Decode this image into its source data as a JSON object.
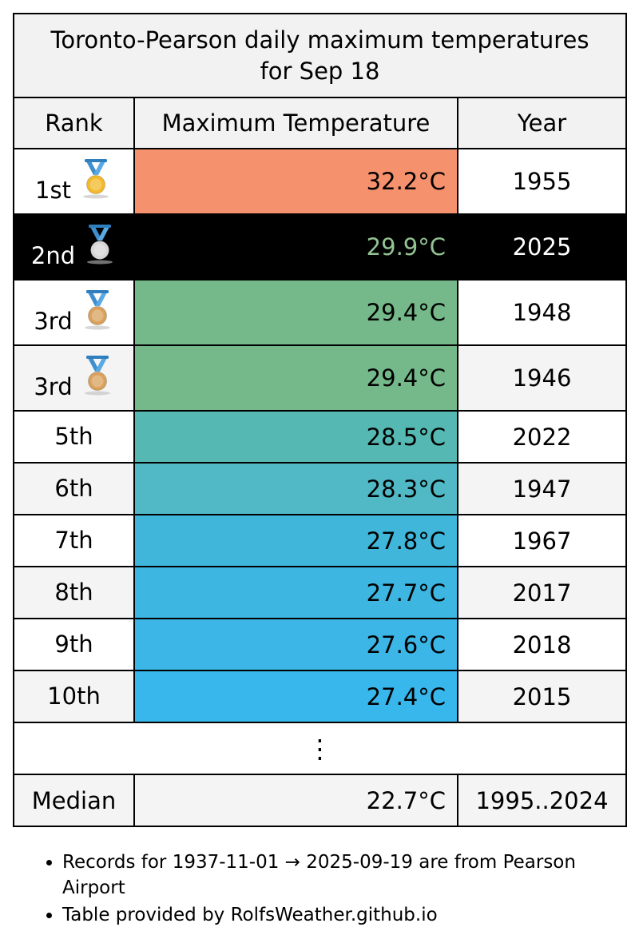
{
  "title": {
    "line1": "Toronto-Pearson daily maximum temperatures",
    "line2": "for Sep 18"
  },
  "headers": {
    "rank": "Rank",
    "temp": "Maximum Temperature",
    "year": "Year"
  },
  "rows": [
    {
      "rank": "1st",
      "temp": "32.2°C",
      "year": "1955",
      "color": "#f5916d",
      "medal": "gold"
    },
    {
      "rank": "2nd",
      "temp": "29.9°C",
      "year": "2025",
      "color": "#000000",
      "medal": "silver"
    },
    {
      "rank": "3rd",
      "temp": "29.4°C",
      "year": "1948",
      "color": "#75b98a",
      "medal": "bronze"
    },
    {
      "rank": "3rd",
      "temp": "29.4°C",
      "year": "1946",
      "color": "#75b98a",
      "medal": "bronze"
    },
    {
      "rank": "5th",
      "temp": "28.5°C",
      "year": "2022",
      "color": "#55b8b2"
    },
    {
      "rank": "6th",
      "temp": "28.3°C",
      "year": "1947",
      "color": "#50b9c5"
    },
    {
      "rank": "7th",
      "temp": "27.8°C",
      "year": "1967",
      "color": "#3fb6da"
    },
    {
      "rank": "8th",
      "temp": "27.7°C",
      "year": "2017",
      "color": "#3db6e2"
    },
    {
      "rank": "9th",
      "temp": "27.6°C",
      "year": "2018",
      "color": "#3bb6e6"
    },
    {
      "rank": "10th",
      "temp": "27.4°C",
      "year": "2015",
      "color": "#37b7eb"
    }
  ],
  "ellipsis": "⋮",
  "median": {
    "label": "Median",
    "temp": "22.7°C",
    "years": "1995..2024"
  },
  "notes": [
    "Records for 1937-11-01 → 2025-09-19 are from Pearson Airport",
    "Table provided by RolfsWeather.github.io"
  ],
  "medal_colors": {
    "gold": "#f2b92a",
    "silver": "#d6d6d6",
    "bronze": "#d9a15b",
    "ribbon": "#3f8fcf"
  }
}
